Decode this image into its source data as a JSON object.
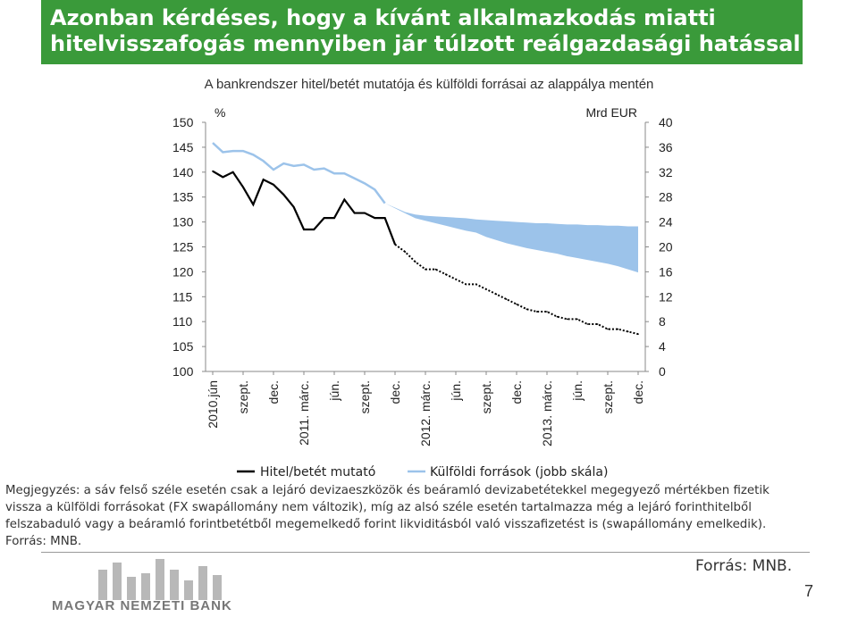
{
  "title": "Azonban kérdéses, hogy a kívánt alkalmazkodás miatti hitelvisszafogás mennyiben jár túlzott reálgazdasági hatással",
  "chart_data": {
    "type": "line",
    "title": "A bankrendszer hitel/betét mutatója és külföldi forrásai az alappálya mentén",
    "left_axis_label": "%",
    "right_axis_label": "Mrd EUR",
    "ylim_left": [
      100,
      150
    ],
    "yticks_left": [
      "150",
      "145",
      "140",
      "135",
      "130",
      "125",
      "120",
      "115",
      "110",
      "105",
      "100"
    ],
    "ylim_right": [
      0,
      40
    ],
    "yticks_right": [
      "40",
      "36",
      "32",
      "28",
      "24",
      "20",
      "16",
      "12",
      "8",
      "4",
      "0"
    ],
    "x_labels": [
      "2010.jún",
      "szept.",
      "dec.",
      "2011. márc.",
      "jún.",
      "szept.",
      "dec.",
      "2012. márc.",
      "jún.",
      "szept.",
      "dec.",
      "2013. márc.",
      "jún.",
      "szept.",
      "dec."
    ],
    "grid": false,
    "legend_position": "bottom",
    "series": [
      {
        "name": "Hitel/betét mutató",
        "axis": "left",
        "color": "#000000",
        "values": [
          140.2,
          139.0,
          140.0,
          137.0,
          133.5,
          138.5,
          137.5,
          135.5,
          133.0,
          128.5,
          128.5,
          130.8,
          130.8,
          134.5,
          131.8,
          131.8,
          130.8,
          130.8,
          125.5,
          124.0,
          122.0,
          120.5,
          120.5,
          119.5,
          118.5,
          117.5,
          117.5,
          116.5,
          115.5,
          114.5,
          113.5,
          112.5,
          112.0,
          112.0,
          111.0,
          110.5,
          110.5,
          109.5,
          109.5,
          108.5,
          108.5,
          108.0,
          107.5
        ]
      },
      {
        "name": "Külföldi források (jobb skála)",
        "axis": "right",
        "color": "#9cc3ea",
        "band_lower": [
          36.7,
          35.2,
          35.4,
          35.4,
          34.8,
          33.8,
          32.4,
          33.4,
          33.0,
          33.2,
          32.4,
          32.6,
          31.8,
          31.8,
          31.0,
          30.2,
          29.2,
          27.0,
          26.2,
          25.4,
          24.6,
          24.2,
          23.8,
          23.4,
          23.0,
          22.6,
          22.3,
          21.6,
          21.1,
          20.6,
          20.2,
          19.8,
          19.5,
          19.2,
          18.9,
          18.5,
          18.2,
          17.9,
          17.6,
          17.3,
          16.9,
          16.4,
          15.9
        ],
        "band_upper": [
          36.7,
          35.2,
          35.4,
          35.4,
          34.8,
          33.8,
          32.4,
          33.4,
          33.0,
          33.2,
          32.4,
          32.6,
          31.8,
          31.8,
          31.0,
          30.2,
          29.2,
          27.0,
          26.3,
          25.6,
          25.2,
          25.0,
          24.9,
          24.8,
          24.7,
          24.6,
          24.4,
          24.3,
          24.2,
          24.1,
          24.0,
          23.9,
          23.8,
          23.8,
          23.7,
          23.6,
          23.6,
          23.5,
          23.5,
          23.4,
          23.4,
          23.3,
          23.3
        ]
      }
    ]
  },
  "notes": [
    "Megjegyzés: a sáv felső széle esetén csak a lejáró devizaeszközök és beáramló devizabetétekkel megegyező mértékben fizetik",
    "vissza a külföldi forrásokat (FX swapállomány nem változik), míg az alsó széle esetén tartalmazza még a lejáró forinthitelből",
    "felszabaduló vagy a beáramló forintbetétből megemelkedő forint likviditásból való visszafizetést is (swapállomány emelkedik).",
    "Forrás: MNB."
  ],
  "footer": {
    "source": "Forrás: MNB.",
    "page_number": "7",
    "logo_text": "MAGYAR NEMZETI BANK"
  }
}
